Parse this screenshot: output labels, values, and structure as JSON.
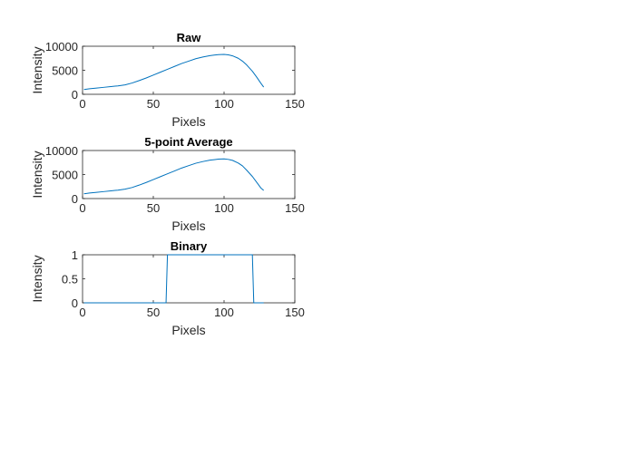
{
  "chart_data": [
    {
      "type": "line",
      "title": "Raw",
      "xlabel": "Pixels",
      "ylabel": "Intensity",
      "xlim": [
        0,
        150
      ],
      "ylim": [
        0,
        10000
      ],
      "xticks": [
        "0",
        "50",
        "100",
        "150"
      ],
      "yticks": [
        "0",
        "5000",
        "10000"
      ],
      "grid": false,
      "color": "#0072bd",
      "series": [
        {
          "x": [
            1,
            5,
            10,
            15,
            20,
            25,
            30,
            35,
            40,
            45,
            50,
            55,
            60,
            65,
            70,
            75,
            80,
            85,
            90,
            93,
            96,
            100,
            103,
            106,
            110,
            113,
            116,
            120,
            123,
            126,
            128
          ],
          "y": [
            1000,
            1150,
            1300,
            1450,
            1600,
            1750,
            1950,
            2350,
            2850,
            3400,
            4000,
            4600,
            5200,
            5800,
            6400,
            6900,
            7400,
            7750,
            8050,
            8150,
            8250,
            8300,
            8200,
            8000,
            7500,
            6900,
            6100,
            4800,
            3600,
            2300,
            1500
          ]
        }
      ]
    },
    {
      "type": "line",
      "title": "5-point Average",
      "xlabel": "Pixels",
      "ylabel": "Intensity",
      "xlim": [
        0,
        150
      ],
      "ylim": [
        0,
        10000
      ],
      "xticks": [
        "0",
        "50",
        "100",
        "150"
      ],
      "yticks": [
        "0",
        "5000",
        "10000"
      ],
      "grid": false,
      "color": "#0072bd",
      "series": [
        {
          "x": [
            1,
            5,
            10,
            15,
            20,
            25,
            30,
            35,
            40,
            45,
            50,
            55,
            60,
            65,
            70,
            75,
            80,
            85,
            90,
            93,
            96,
            100,
            103,
            106,
            110,
            113,
            116,
            120,
            123,
            126,
            128
          ],
          "y": [
            1000,
            1150,
            1300,
            1450,
            1600,
            1750,
            1950,
            2300,
            2800,
            3350,
            3950,
            4550,
            5150,
            5750,
            6350,
            6850,
            7350,
            7700,
            8000,
            8100,
            8200,
            8250,
            8150,
            7950,
            7400,
            6800,
            5900,
            4600,
            3400,
            2200,
            1700
          ]
        }
      ]
    },
    {
      "type": "line",
      "title": "Binary",
      "xlabel": "Pixels",
      "ylabel": "Intensity",
      "xlim": [
        0,
        150
      ],
      "ylim": [
        0,
        1
      ],
      "xticks": [
        "0",
        "50",
        "100",
        "150"
      ],
      "yticks": [
        "0",
        "0.5",
        "1"
      ],
      "grid": false,
      "color": "#0072bd",
      "series": [
        {
          "x": [
            1,
            59,
            60,
            120,
            121,
            128
          ],
          "y": [
            0,
            0,
            1,
            1,
            0,
            0
          ]
        }
      ]
    }
  ]
}
